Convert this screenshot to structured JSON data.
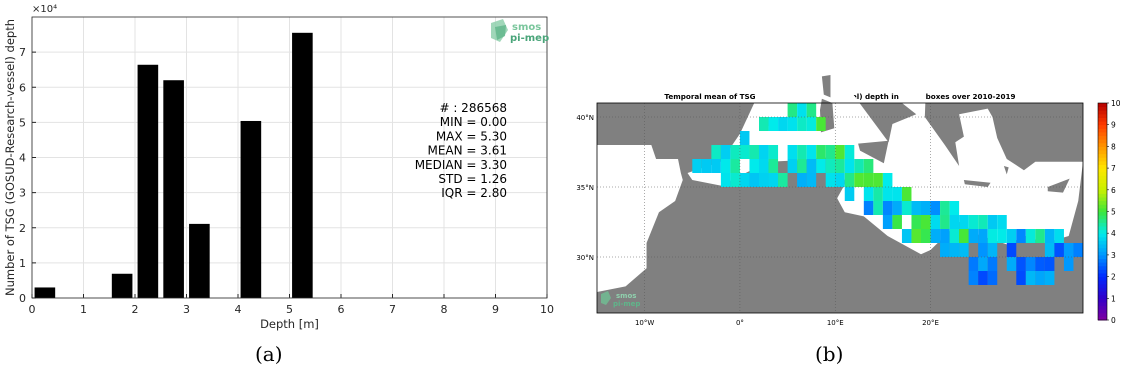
{
  "chart_data": [
    {
      "type": "bar",
      "x": [
        0.25,
        1.75,
        2.25,
        2.75,
        3.25,
        4.25,
        5.25
      ],
      "values": [
        3000,
        6900,
        66400,
        62000,
        21100,
        50400,
        75500
      ],
      "xlabel": "Depth [m]",
      "ylabel": "Number of TSG (GOSUD-Research-vessel) depth",
      "y_exponent": "×10⁴",
      "xlim": [
        0,
        10
      ],
      "ylim": [
        0,
        80000
      ],
      "x_ticks": [
        "0",
        "1",
        "2",
        "3",
        "4",
        "5",
        "6",
        "7",
        "8",
        "9",
        "10"
      ],
      "y_ticks": [
        "0",
        "1",
        "2",
        "3",
        "4",
        "5",
        "6",
        "7"
      ],
      "grid": true,
      "stats": [
        "# : 286568",
        "MIN = 0.00",
        "MAX =  5.30",
        "MEAN = 3.61",
        "MEDIAN = 3.30",
        "STD = 1.26",
        "IQR = 2.80"
      ],
      "bar_color": "#000000"
    },
    {
      "type": "heatmap",
      "title": "Temporal mean of TSG (GOSUD-Research-vessel) depth in 1°x1° boxes over 2010-2019",
      "lon_ticks": [
        "10°W",
        "0°",
        "10°E",
        "20°E"
      ],
      "lat_ticks": [
        "40°N",
        "35°N",
        "30°N"
      ],
      "colorbar_ticks": [
        "0",
        "1",
        "2",
        "3",
        "4",
        "5",
        "6",
        "7",
        "8",
        "9",
        "10"
      ],
      "colorbar_range": [
        0,
        10
      ],
      "colors": {
        "land": "#808080",
        "sea": "#ffffff"
      }
    }
  ],
  "logo": {
    "line1": "smos",
    "line2": "pi-mep"
  },
  "captions": {
    "a": "(a)",
    "b": "(b)"
  }
}
